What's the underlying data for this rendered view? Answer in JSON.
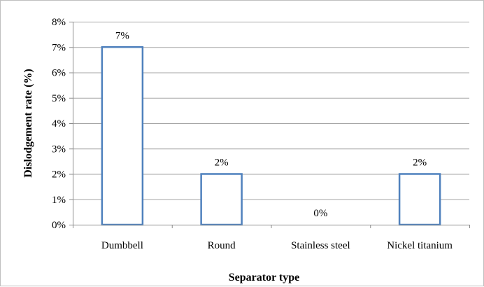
{
  "chart_data": {
    "type": "bar",
    "title": "",
    "xlabel": "Separator type",
    "ylabel": "Dislodgement rate (%)",
    "categories": [
      "Dumbbell",
      "Round",
      "Stainless steel",
      "Nickel titanium"
    ],
    "values": [
      7,
      2,
      0,
      2
    ],
    "data_labels": [
      "7%",
      "2%",
      "0%",
      "2%"
    ],
    "yticks": [
      0,
      1,
      2,
      3,
      4,
      5,
      6,
      7,
      8
    ],
    "ytick_labels": [
      "0%",
      "1%",
      "2%",
      "3%",
      "4%",
      "5%",
      "6%",
      "7%",
      "8%"
    ],
    "ylim": [
      0,
      8
    ],
    "grid": true,
    "legend": "none",
    "bar_stroke_color": "#4f81bd",
    "bar_fill_color": "#ffffff",
    "grid_color": "#a6a6a6"
  }
}
